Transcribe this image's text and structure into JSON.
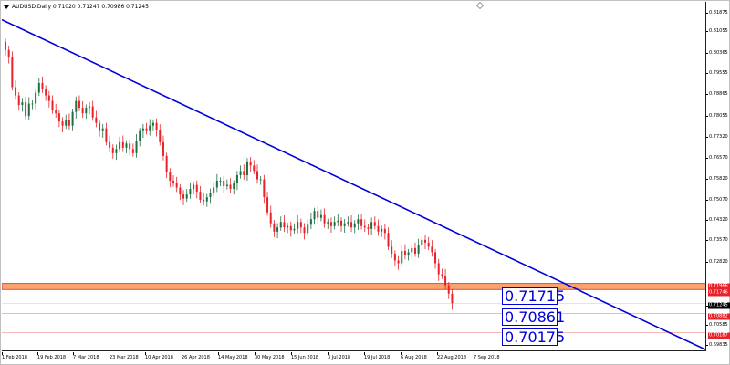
{
  "window": {
    "header": "AUDUSD,Daily  0.71020 0.71247 0.70986 0.71245"
  },
  "price_axis": {
    "ticks": [
      "0.81875",
      "0.81055",
      "0.80365",
      "0.79555",
      "0.78865",
      "0.78055",
      "0.77320",
      "0.76570",
      "0.75820",
      "0.75070",
      "0.74320",
      "0.73570",
      "0.72820",
      "0.71245",
      "0.70585",
      "0.69835"
    ],
    "tags": [
      {
        "label": "0.71966",
        "bg": "#e8222a",
        "fg": "#ffffff"
      },
      {
        "label": "0.71746",
        "bg": "#e8222a",
        "fg": "#ffffff"
      },
      {
        "label": "0.71245",
        "bg": "#000000",
        "fg": "#ffffff"
      },
      {
        "label": "0.70882",
        "bg": "#e8222a",
        "fg": "#ffffff"
      },
      {
        "label": "0.70187",
        "bg": "#e8222a",
        "fg": "#ffffff"
      }
    ]
  },
  "time_axis": {
    "labels": [
      "1 Feb 2018",
      "19 Feb 2018",
      "7 Mar 2018",
      "23 Mar 2018",
      "10 Apr 2018",
      "26 Apr 2018",
      "14 May 2018",
      "30 May 2018",
      "15 Jun 2018",
      "3 Jul 2018",
      "19 Jul 2018",
      "6 Aug 2018",
      "22 Aug 2018",
      "7 Sep 2018"
    ]
  },
  "annotations": {
    "levels": [
      "0.71715",
      "0.70861",
      "0.70175"
    ]
  },
  "colors": {
    "bull_candle": "#1f6e43",
    "bear_candle": "#e8222a",
    "trendline": "#0000d8",
    "resistance_zone": "#f9a46e",
    "zone_border": "#e8222a"
  },
  "chart_data": {
    "type": "candlestick",
    "symbol": "AUDUSD",
    "timeframe": "Daily",
    "last_bar": {
      "open": 0.7102,
      "high": 0.71247,
      "low": 0.70986,
      "close": 0.71245
    },
    "x_range": [
      "1 Feb 2018",
      "11 Sep 2018"
    ],
    "ylim": [
      0.695,
      0.822
    ],
    "closes": [
      0.8045,
      0.802,
      0.791,
      0.788,
      0.7845,
      0.7855,
      0.7805,
      0.785,
      0.785,
      0.789,
      0.7925,
      0.7905,
      0.788,
      0.786,
      0.7825,
      0.7815,
      0.7785,
      0.777,
      0.779,
      0.777,
      0.782,
      0.786,
      0.7835,
      0.7815,
      0.7835,
      0.784,
      0.78,
      0.778,
      0.775,
      0.776,
      0.771,
      0.769,
      0.767,
      0.7685,
      0.771,
      0.769,
      0.7705,
      0.7685,
      0.767,
      0.7715,
      0.775,
      0.776,
      0.775,
      0.777,
      0.778,
      0.7755,
      0.771,
      0.766,
      0.76,
      0.757,
      0.756,
      0.7545,
      0.752,
      0.7505,
      0.752,
      0.754,
      0.7555,
      0.753,
      0.75,
      0.7495,
      0.751,
      0.7525,
      0.7545,
      0.757,
      0.757,
      0.755,
      0.7555,
      0.754,
      0.756,
      0.759,
      0.7605,
      0.759,
      0.764,
      0.7625,
      0.7605,
      0.7575,
      0.7575,
      0.751,
      0.7455,
      0.7415,
      0.7385,
      0.74,
      0.742,
      0.74,
      0.7405,
      0.739,
      0.7395,
      0.742,
      0.74,
      0.738,
      0.741,
      0.743,
      0.746,
      0.7435,
      0.7445,
      0.7415,
      0.742,
      0.7405,
      0.742,
      0.7425,
      0.7405,
      0.7415,
      0.742,
      0.74,
      0.7415,
      0.743,
      0.7405,
      0.74,
      0.7395,
      0.742,
      0.7405,
      0.7385,
      0.7395,
      0.738,
      0.733,
      0.7305,
      0.728,
      0.727,
      0.7315,
      0.73,
      0.731,
      0.7325,
      0.7305,
      0.7335,
      0.7355,
      0.7345,
      0.733,
      0.731,
      0.727,
      0.723,
      0.7225,
      0.719,
      0.716,
      0.7125
    ],
    "trendlines": [
      {
        "label": "downtrend",
        "from": {
          "date": "1 Feb 2018",
          "price": 0.8155
        },
        "to": {
          "date": "11 Sep 2018",
          "price": 0.6955
        }
      }
    ],
    "zones": [
      {
        "label": "resistance zone",
        "price_from": 0.71746,
        "price_to": 0.71966
      }
    ],
    "horizontal_levels": [
      0.71245,
      0.70882,
      0.70187
    ],
    "grid": false
  }
}
